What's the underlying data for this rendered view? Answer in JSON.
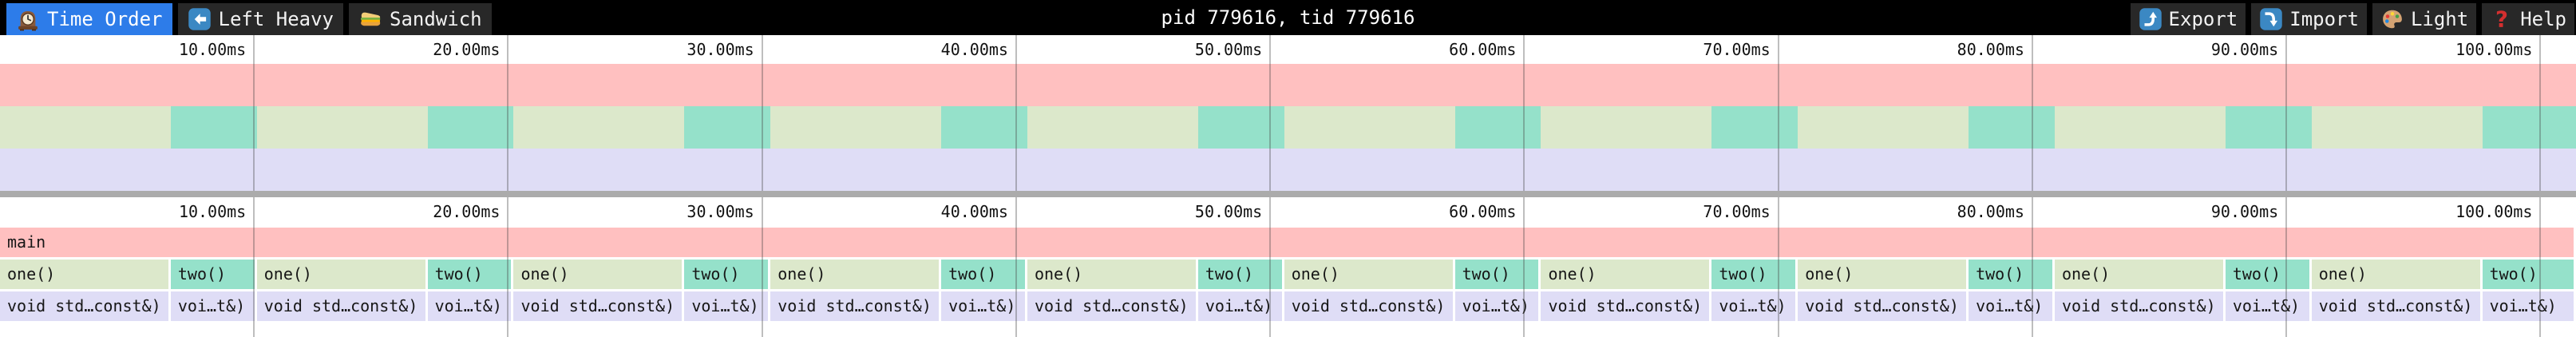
{
  "topbar": {
    "title": "pid 779616, tid 779616",
    "tabs": [
      {
        "label": "Time Order",
        "icon": "clock-icon",
        "active": true
      },
      {
        "label": "Left Heavy",
        "icon": "left-arrow-icon",
        "active": false
      },
      {
        "label": "Sandwich",
        "icon": "sandwich-icon",
        "active": false
      }
    ],
    "actions": [
      {
        "label": "Export",
        "icon": "export-icon"
      },
      {
        "label": "Import",
        "icon": "import-icon"
      },
      {
        "label": "Light",
        "icon": "palette-icon"
      },
      {
        "label": "Help",
        "icon": "help-icon"
      }
    ]
  },
  "timeline": {
    "total_ms": 101.4,
    "tick_interval_ms": 10,
    "ticks": [
      {
        "ms": 10,
        "label": "10.00ms"
      },
      {
        "ms": 20,
        "label": "20.00ms"
      },
      {
        "ms": 30,
        "label": "30.00ms"
      },
      {
        "ms": 40,
        "label": "40.00ms"
      },
      {
        "ms": 50,
        "label": "50.00ms"
      },
      {
        "ms": 60,
        "label": "60.00ms"
      },
      {
        "ms": 70,
        "label": "70.00ms"
      },
      {
        "ms": 80,
        "label": "80.00ms"
      },
      {
        "ms": 90,
        "label": "90.00ms"
      },
      {
        "ms": 100,
        "label": "100.00ms"
      }
    ]
  },
  "flamegraph": {
    "rows": [
      {
        "depth": 0,
        "frames": [
          {
            "label": "main",
            "color_key": "frame_main",
            "start_ms": 0,
            "end_ms": 101.4
          }
        ]
      },
      {
        "depth": 1,
        "frames": [
          {
            "label": "one()",
            "color_key": "frame_one",
            "start_ms": 0,
            "end_ms": 6.72
          },
          {
            "label": "two()",
            "color_key": "frame_two",
            "start_ms": 6.72,
            "end_ms": 10.11
          },
          {
            "label": "one()",
            "color_key": "frame_one",
            "start_ms": 10.11,
            "end_ms": 16.83
          },
          {
            "label": "two()",
            "color_key": "frame_two",
            "start_ms": 16.83,
            "end_ms": 20.22
          },
          {
            "label": "one()",
            "color_key": "frame_one",
            "start_ms": 20.22,
            "end_ms": 26.94
          },
          {
            "label": "two()",
            "color_key": "frame_two",
            "start_ms": 26.94,
            "end_ms": 30.33
          },
          {
            "label": "one()",
            "color_key": "frame_one",
            "start_ms": 30.33,
            "end_ms": 37.05
          },
          {
            "label": "two()",
            "color_key": "frame_two",
            "start_ms": 37.05,
            "end_ms": 40.44
          },
          {
            "label": "one()",
            "color_key": "frame_one",
            "start_ms": 40.44,
            "end_ms": 47.16
          },
          {
            "label": "two()",
            "color_key": "frame_two",
            "start_ms": 47.16,
            "end_ms": 50.55
          },
          {
            "label": "one()",
            "color_key": "frame_one",
            "start_ms": 50.55,
            "end_ms": 57.27
          },
          {
            "label": "two()",
            "color_key": "frame_two",
            "start_ms": 57.27,
            "end_ms": 60.66
          },
          {
            "label": "one()",
            "color_key": "frame_one",
            "start_ms": 60.66,
            "end_ms": 67.38
          },
          {
            "label": "two()",
            "color_key": "frame_two",
            "start_ms": 67.38,
            "end_ms": 70.77
          },
          {
            "label": "one()",
            "color_key": "frame_one",
            "start_ms": 70.77,
            "end_ms": 77.49
          },
          {
            "label": "two()",
            "color_key": "frame_two",
            "start_ms": 77.49,
            "end_ms": 80.88
          },
          {
            "label": "one()",
            "color_key": "frame_one",
            "start_ms": 80.88,
            "end_ms": 87.6
          },
          {
            "label": "two()",
            "color_key": "frame_two",
            "start_ms": 87.6,
            "end_ms": 90.99
          },
          {
            "label": "one()",
            "color_key": "frame_one",
            "start_ms": 90.99,
            "end_ms": 97.71
          },
          {
            "label": "two()",
            "color_key": "frame_two",
            "start_ms": 97.71,
            "end_ms": 101.4
          }
        ]
      },
      {
        "depth": 2,
        "frames": [
          {
            "label": "void std…const&)",
            "color_key": "frame_void",
            "start_ms": 0,
            "end_ms": 6.72
          },
          {
            "label": "voi…t&)",
            "color_key": "frame_void",
            "start_ms": 6.72,
            "end_ms": 10.11
          },
          {
            "label": "void std…const&)",
            "color_key": "frame_void",
            "start_ms": 10.11,
            "end_ms": 16.83
          },
          {
            "label": "voi…t&)",
            "color_key": "frame_void",
            "start_ms": 16.83,
            "end_ms": 20.22
          },
          {
            "label": "void std…const&)",
            "color_key": "frame_void",
            "start_ms": 20.22,
            "end_ms": 26.94
          },
          {
            "label": "voi…t&)",
            "color_key": "frame_void",
            "start_ms": 26.94,
            "end_ms": 30.33
          },
          {
            "label": "void std…const&)",
            "color_key": "frame_void",
            "start_ms": 30.33,
            "end_ms": 37.05
          },
          {
            "label": "voi…t&)",
            "color_key": "frame_void",
            "start_ms": 37.05,
            "end_ms": 40.44
          },
          {
            "label": "void std…const&)",
            "color_key": "frame_void",
            "start_ms": 40.44,
            "end_ms": 47.16
          },
          {
            "label": "voi…t&)",
            "color_key": "frame_void",
            "start_ms": 47.16,
            "end_ms": 50.55
          },
          {
            "label": "void std…const&)",
            "color_key": "frame_void",
            "start_ms": 50.55,
            "end_ms": 57.27
          },
          {
            "label": "voi…t&)",
            "color_key": "frame_void",
            "start_ms": 57.27,
            "end_ms": 60.66
          },
          {
            "label": "void std…const&)",
            "color_key": "frame_void",
            "start_ms": 60.66,
            "end_ms": 67.38
          },
          {
            "label": "voi…t&)",
            "color_key": "frame_void",
            "start_ms": 67.38,
            "end_ms": 70.77
          },
          {
            "label": "void std…const&)",
            "color_key": "frame_void",
            "start_ms": 70.77,
            "end_ms": 77.49
          },
          {
            "label": "voi…t&)",
            "color_key": "frame_void",
            "start_ms": 77.49,
            "end_ms": 80.88
          },
          {
            "label": "void std…const&)",
            "color_key": "frame_void",
            "start_ms": 80.88,
            "end_ms": 87.6
          },
          {
            "label": "voi…t&)",
            "color_key": "frame_void",
            "start_ms": 87.6,
            "end_ms": 90.99
          },
          {
            "label": "void std…const&)",
            "color_key": "frame_void",
            "start_ms": 90.99,
            "end_ms": 97.71
          },
          {
            "label": "voi…t&)",
            "color_key": "frame_void",
            "start_ms": 97.71,
            "end_ms": 101.4
          }
        ]
      }
    ]
  },
  "colors": {
    "topbar_bg": "#000000",
    "tab_active_bg": "#2d7ce9",
    "tab_inactive_bg": "#282828",
    "frame_main": "#ffc0c0",
    "frame_one": "#dce8cb",
    "frame_two": "#95e1ca",
    "frame_void": "#dfddf6",
    "divider": "#ababab",
    "gridline": "rgba(68,68,68,0.35)",
    "icon_blue": "#3b88c3",
    "help_red": "#d32f2f"
  }
}
